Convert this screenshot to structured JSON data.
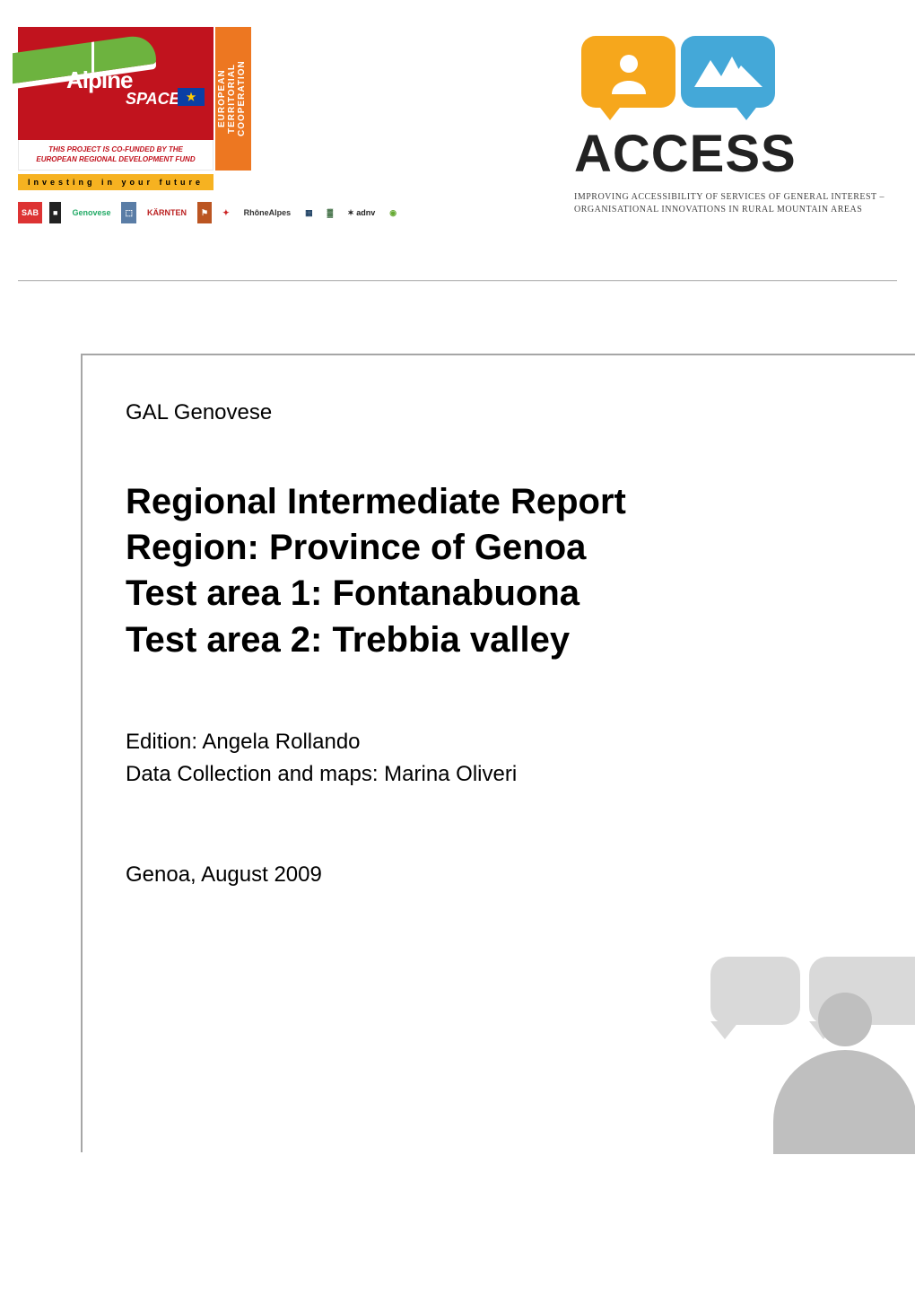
{
  "colors": {
    "alpine_red": "#c1131e",
    "alpine_green": "#6db33f",
    "coop_orange": "#ed7721",
    "invest_yellow": "#f6b221",
    "access_orange": "#f6a71c",
    "access_blue": "#44a8d8",
    "access_text": "#222222",
    "frame_border": "#a6a6a6",
    "deco_light": "#d9d9d9",
    "deco_dark": "#bfbfbf",
    "divider_gray": "#bbbbbb"
  },
  "header": {
    "alpine": {
      "title": "Alpine",
      "subtitle": "SPACE",
      "coop_strip": "EUROPEAN TERRITORIAL COOPERATION",
      "cofund_line1": "THIS PROJECT IS CO-FUNDED BY THE",
      "cofund_line2": "EUROPEAN REGIONAL DEVELOPMENT FUND",
      "invest": "Investing   in   your   future"
    },
    "partners": [
      {
        "label": "SAB",
        "bg": "#d33",
        "color": "#fff"
      },
      {
        "label": "■",
        "bg": "#222",
        "color": "#fff"
      },
      {
        "label": "Genovese",
        "bg": "#fff",
        "color": "#2a6"
      },
      {
        "label": "⬚",
        "bg": "#5a7da6",
        "color": "#fff"
      },
      {
        "label": "KÄRNTEN",
        "bg": "#fff",
        "color": "#b22"
      },
      {
        "label": "⚑",
        "bg": "#b52",
        "color": "#fff"
      },
      {
        "label": "✦",
        "bg": "#fff",
        "color": "#c22"
      },
      {
        "label": "RhôneAlpes",
        "bg": "#fff",
        "color": "#333"
      },
      {
        "label": "▦",
        "bg": "#fff",
        "color": "#246"
      },
      {
        "label": "▓",
        "bg": "#fff",
        "color": "#255a2a"
      },
      {
        "label": "✶ adnv",
        "bg": "#fff",
        "color": "#222"
      },
      {
        "label": "◉",
        "bg": "#fff",
        "color": "#6a3"
      }
    ],
    "access": {
      "word": "ACCESS",
      "tagline_l1": "IMPROVING ACCESSIBILITY OF SERVICES OF GENERAL INTEREST –",
      "tagline_l2": "ORGANISATIONAL INNOVATIONS IN RURAL MOUNTAIN AREAS"
    }
  },
  "body": {
    "organisation": "GAL Genovese",
    "title_lines": [
      "Regional Intermediate Report",
      "Region: Province of Genoa",
      "Test area 1: Fontanabuona",
      "Test area 2: Trebbia valley"
    ],
    "credit_lines": [
      "Edition: Angela Rollando",
      "Data Collection and maps: Marina Oliveri"
    ],
    "date_location": "Genoa, August 2009"
  }
}
